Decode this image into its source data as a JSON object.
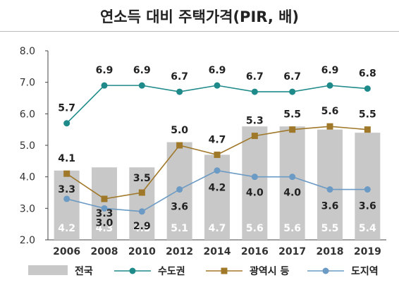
{
  "chart_data": {
    "type": "bar",
    "title": "연소득 대비 주택가격(PIR, 배)",
    "categories": [
      "2006",
      "2008",
      "2010",
      "2012",
      "2014",
      "2016",
      "2017",
      "2018",
      "2019"
    ],
    "ylim": [
      2.0,
      8.0
    ],
    "yticks": [
      "2.0",
      "3.0",
      "4.0",
      "5.0",
      "6.0",
      "7.0",
      "8.0"
    ],
    "grid": false,
    "legend_position": "bottom",
    "series": [
      {
        "name": "전국",
        "kind": "bar",
        "color": "#c8c8c8",
        "label_color": "#ffffff",
        "values": [
          4.2,
          4.3,
          4.3,
          5.1,
          4.7,
          5.6,
          5.6,
          5.5,
          5.4
        ],
        "labels": [
          "4.2",
          "4.3",
          "4.3",
          "5.1",
          "4.7",
          "5.6",
          "5.6",
          "5.5",
          "5.4"
        ]
      },
      {
        "name": "수도권",
        "kind": "line",
        "marker": "circle",
        "color": "#1f8a8a",
        "values": [
          5.7,
          6.9,
          6.9,
          6.7,
          6.9,
          6.7,
          6.7,
          6.9,
          6.8
        ],
        "labels": [
          "5.7",
          "6.9",
          "6.9",
          "6.7",
          "6.9",
          "6.7",
          "6.7",
          "6.9",
          "6.8"
        ]
      },
      {
        "name": "광역시 등",
        "kind": "line",
        "marker": "square",
        "color": "#a0782a",
        "values": [
          4.1,
          3.3,
          3.5,
          5.0,
          4.7,
          5.3,
          5.5,
          5.6,
          5.5
        ],
        "labels": [
          "4.1",
          "3.3",
          "3.5",
          "5.0",
          "4.7",
          "5.3",
          "5.5",
          "5.6",
          "5.5"
        ]
      },
      {
        "name": "도지역",
        "kind": "line",
        "marker": "circle",
        "color": "#6b9ac4",
        "values": [
          3.3,
          3.0,
          2.9,
          3.6,
          4.2,
          4.0,
          4.0,
          3.6,
          3.6
        ],
        "labels": [
          "3.3",
          "3.0",
          "2.9",
          "3.6",
          "4.2",
          "4.0",
          "4.0",
          "3.6",
          "3.6"
        ]
      }
    ]
  }
}
